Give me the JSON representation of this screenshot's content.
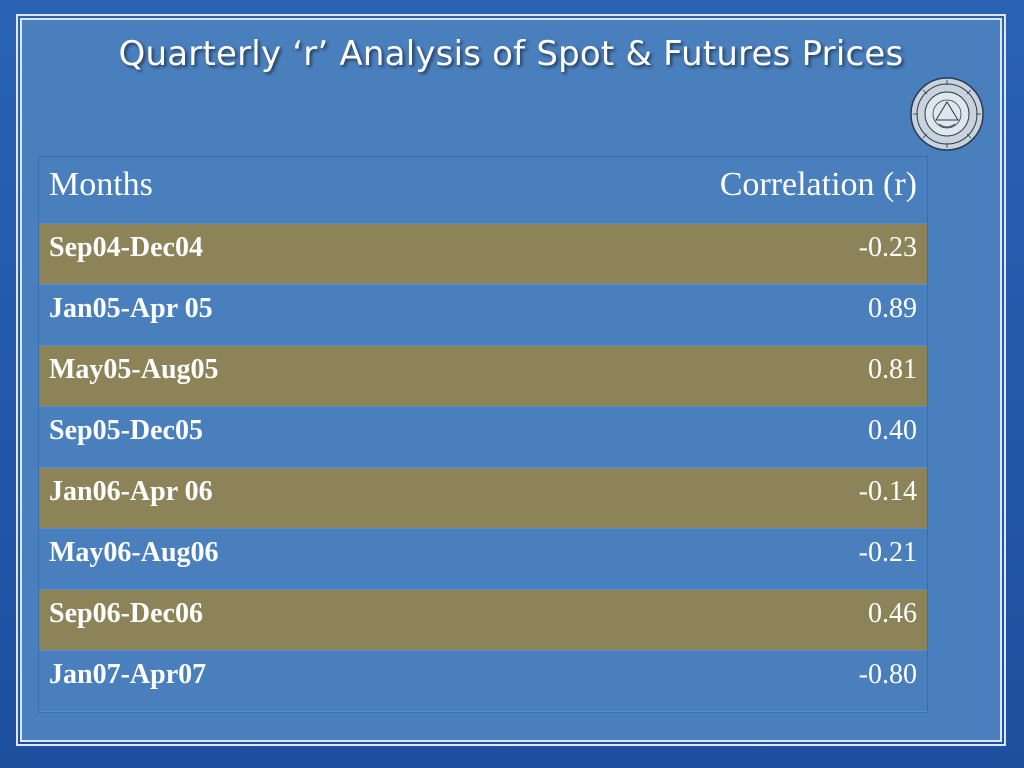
{
  "title": "Quarterly  ‘r’ Analysis of Spot & Futures Prices",
  "colors": {
    "slide_background": "#4a7fbe",
    "shaded_row": "#8c8359",
    "text": "#ffffff"
  },
  "seal": {
    "icon": "university-seal-icon"
  },
  "table": {
    "headers": [
      "Months",
      "Correlation (r)"
    ],
    "rows": [
      {
        "month": "Sep04-Dec04",
        "r": "-0.23"
      },
      {
        "month": "Jan05-Apr 05",
        "r": "0.89"
      },
      {
        "month": "May05-Aug05",
        "r": "0.81"
      },
      {
        "month": "Sep05-Dec05",
        "r": "0.40"
      },
      {
        "month": "Jan06-Apr 06",
        "r": "-0.14"
      },
      {
        "month": "May06-Aug06",
        "r": "-0.21"
      },
      {
        "month": "Sep06-Dec06",
        "r": "0.46"
      },
      {
        "month": "Jan07-Apr07",
        "r": "-0.80"
      }
    ]
  }
}
